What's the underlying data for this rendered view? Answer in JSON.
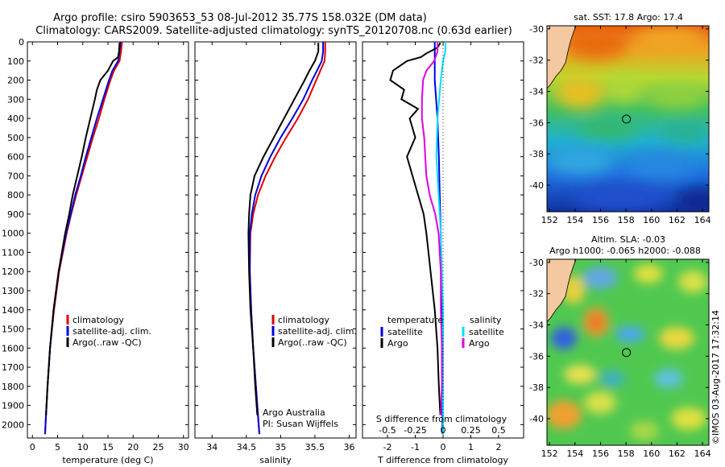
{
  "title": {
    "line1": "Argo profile: csiro 5903653_53 08-Jul-2012 35.77S 158.032E (DM data)",
    "line2": "Climatology: CARS2009. Satellite-adjusted climatology: synTS_20120708.nc (0.63d earlier)"
  },
  "credit": "©IMOS 03-Aug-2017 17:32:14",
  "colors": {
    "climatology": "#e00000",
    "satellite": "#0000e0",
    "argo": "#000000",
    "sal_satellite": "#00e0ff",
    "sal_argo": "#e000e0"
  },
  "chart_data": [
    {
      "id": "temperature",
      "type": "line",
      "xlabel": "temperature (deg C)",
      "ylabel": "",
      "xlim": [
        -1,
        31
      ],
      "ylim": [
        2070,
        0
      ],
      "xticks": [
        0,
        5,
        10,
        15,
        20,
        25,
        30
      ],
      "xtick_labels": [
        "0",
        "5",
        "10",
        "15",
        "20",
        "25",
        "30"
      ],
      "yticks": [
        0,
        100,
        200,
        300,
        400,
        500,
        600,
        700,
        800,
        900,
        1000,
        1100,
        1200,
        1300,
        1400,
        1500,
        1600,
        1700,
        1800,
        1900,
        2000
      ],
      "ytick_labels": [
        "0",
        "100",
        "200",
        "300",
        "400",
        "500",
        "600",
        "700",
        "800",
        "900",
        "1000",
        "1100",
        "1200",
        "1300",
        "1400",
        "1500",
        "1600",
        "1700",
        "1800",
        "1900",
        "2000"
      ],
      "legend": [
        "climatology",
        "satellite-adj. clim.",
        "Argo(..raw -QC)"
      ],
      "series": [
        {
          "name": "climatology",
          "color": "#e00000",
          "depth": [
            0,
            50,
            100,
            150,
            200,
            300,
            400,
            500,
            600,
            700,
            800,
            900,
            1000,
            1200,
            1400,
            1600,
            1800,
            2000,
            2050
          ],
          "values": [
            17.8,
            17.6,
            17.3,
            16.2,
            15.5,
            14.3,
            13.2,
            12.0,
            10.9,
            9.8,
            8.7,
            7.7,
            6.8,
            5.3,
            4.3,
            3.5,
            3.0,
            2.6,
            2.5
          ]
        },
        {
          "name": "satellite-adj. clim.",
          "color": "#0000e0",
          "depth": [
            0,
            50,
            100,
            150,
            200,
            300,
            400,
            500,
            600,
            700,
            800,
            900,
            1000,
            1200,
            1400,
            1600,
            1800,
            2000,
            2050
          ],
          "values": [
            17.5,
            17.3,
            17.0,
            15.9,
            15.2,
            14.0,
            12.8,
            11.7,
            10.6,
            9.6,
            8.5,
            7.6,
            6.7,
            5.2,
            4.2,
            3.5,
            3.0,
            2.6,
            2.5
          ]
        },
        {
          "name": "Argo(..raw -QC)",
          "color": "#000000",
          "depth": [
            5,
            50,
            80,
            100,
            150,
            200,
            250,
            300,
            400,
            500,
            600,
            700,
            800,
            900,
            1000,
            1200,
            1400,
            1600,
            1800,
            1950
          ],
          "values": [
            17.3,
            17.2,
            17.0,
            16.0,
            15.0,
            13.5,
            12.8,
            12.4,
            11.5,
            10.6,
            9.8,
            8.9,
            8.0,
            7.3,
            6.5,
            5.2,
            4.2,
            3.5,
            3.0,
            2.7
          ]
        }
      ]
    },
    {
      "id": "salinity",
      "type": "line",
      "xlabel": "salinity",
      "xlim": [
        33.75,
        36.1
      ],
      "ylim": [
        2070,
        0
      ],
      "xticks": [
        34,
        34.5,
        35,
        35.5,
        36
      ],
      "xtick_labels": [
        "34",
        "34.5",
        "35",
        "35.5",
        "36"
      ],
      "legend": [
        "climatology",
        "satellite-adj. clim.",
        "Argo(..raw -QC)"
      ],
      "annotation": [
        "Argo Australia",
        "PI: Susan Wijffels"
      ],
      "series": [
        {
          "name": "climatology",
          "color": "#e00000",
          "depth": [
            0,
            50,
            100,
            150,
            200,
            300,
            400,
            500,
            600,
            700,
            800,
            900,
            1000,
            1200,
            1400,
            1600,
            1800,
            2000,
            2050
          ],
          "values": [
            35.65,
            35.65,
            35.64,
            35.58,
            35.52,
            35.4,
            35.25,
            35.08,
            34.92,
            34.78,
            34.67,
            34.6,
            34.56,
            34.55,
            34.57,
            34.6,
            34.64,
            34.68,
            34.69
          ]
        },
        {
          "name": "satellite-adj. clim.",
          "color": "#0000e0",
          "depth": [
            0,
            50,
            100,
            150,
            200,
            300,
            400,
            500,
            600,
            700,
            800,
            900,
            1000,
            1200,
            1400,
            1600,
            1800,
            2000,
            2050
          ],
          "values": [
            35.62,
            35.62,
            35.6,
            35.53,
            35.46,
            35.33,
            35.17,
            35.0,
            34.85,
            34.72,
            34.63,
            34.58,
            34.55,
            34.55,
            34.57,
            34.6,
            34.64,
            34.68,
            34.69
          ]
        },
        {
          "name": "Argo(..raw -QC)",
          "color": "#000000",
          "depth": [
            5,
            50,
            100,
            150,
            200,
            300,
            400,
            500,
            600,
            700,
            800,
            900,
            1000,
            1200,
            1400,
            1600,
            1800,
            1950
          ],
          "values": [
            35.55,
            35.55,
            35.5,
            35.42,
            35.35,
            35.2,
            35.05,
            34.9,
            34.75,
            34.62,
            34.56,
            34.54,
            34.53,
            34.54,
            34.56,
            34.6,
            34.63,
            34.66
          ]
        }
      ]
    },
    {
      "id": "difference",
      "type": "line",
      "xlabel": "T difference from climatology",
      "xlabel_top": "S difference from climatology",
      "xlim": [
        -2.9,
        2.9
      ],
      "ylim": [
        2070,
        0
      ],
      "xticks": [
        -2,
        -1,
        0,
        1,
        2
      ],
      "xtick_labels": [
        "-2",
        "-1",
        "0",
        "1",
        "2"
      ],
      "s_ticks": [
        -0.5,
        -0.25,
        0,
        0.25,
        0.5
      ],
      "s_tick_labels": [
        "-0.5",
        "-0.25",
        "0",
        "0.25",
        "0.5"
      ],
      "legend_temperature": {
        "title": "temperature",
        "items": [
          "satellite",
          "Argo"
        ]
      },
      "legend_salinity": {
        "title": "salinity",
        "items": [
          "satellite",
          "Argo"
        ]
      },
      "series": [
        {
          "name": "temperature satellite",
          "color": "#0000e0",
          "depth": [
            0,
            50,
            100,
            200,
            400,
            600,
            800,
            1000,
            1200,
            1400,
            1600,
            1800,
            2000,
            2050
          ],
          "values": [
            -0.3,
            -0.3,
            -0.3,
            -0.3,
            -0.2,
            -0.15,
            -0.12,
            -0.08,
            -0.06,
            -0.05,
            -0.04,
            -0.03,
            -0.02,
            -0.02
          ]
        },
        {
          "name": "temperature Argo",
          "color": "#000000",
          "depth": [
            5,
            30,
            60,
            80,
            100,
            150,
            200,
            250,
            300,
            350,
            400,
            500,
            600,
            700,
            800,
            900,
            1000,
            1200,
            1400,
            1600,
            1800,
            1950
          ],
          "values": [
            -0.1,
            -0.2,
            -0.6,
            -0.8,
            -1.3,
            -1.8,
            -1.9,
            -1.4,
            -1.5,
            -0.9,
            -1.2,
            -1.0,
            -1.3,
            -1.1,
            -0.9,
            -0.7,
            -0.6,
            -0.45,
            -0.3,
            -0.2,
            -0.15,
            -0.1
          ]
        },
        {
          "name": "salinity satellite",
          "color": "#00e0ff",
          "depth": [
            0,
            50,
            100,
            200,
            400,
            600,
            800,
            1000,
            1200,
            1400,
            1600,
            1800,
            2000,
            2050
          ],
          "values": [
            0.02,
            0.02,
            0.0,
            -0.02,
            -0.05,
            -0.06,
            -0.04,
            -0.02,
            -0.01,
            0.0,
            0.0,
            0.0,
            0.0,
            0.0
          ]
        },
        {
          "name": "salinity Argo",
          "color": "#e000e0",
          "depth": [
            5,
            50,
            100,
            150,
            200,
            300,
            400,
            500,
            600,
            700,
            800,
            900,
            1000,
            1200,
            1400,
            1600,
            1800,
            1950
          ],
          "values": [
            -0.05,
            -0.05,
            -0.08,
            -0.15,
            -0.18,
            -0.19,
            -0.19,
            -0.17,
            -0.16,
            -0.15,
            -0.12,
            -0.07,
            -0.04,
            -0.02,
            -0.02,
            -0.01,
            -0.01,
            -0.02
          ]
        }
      ]
    },
    {
      "id": "sst-map",
      "type": "heatmap",
      "title": "sat. SST: 17.8  Argo: 17.4",
      "xticks": [
        152,
        154,
        156,
        158,
        160,
        162,
        164
      ],
      "xtick_labels": [
        "152",
        "154",
        "156",
        "158",
        "160",
        "162",
        "164"
      ],
      "yticks": [
        -30,
        -32,
        -34,
        -36,
        -38,
        -40
      ],
      "ytick_labels": [
        "-30",
        "-32",
        "-34",
        "-36",
        "-38",
        "-40"
      ],
      "xlim": [
        151.8,
        164.5
      ],
      "ylim": [
        -41.7,
        -29.8
      ],
      "profile_location": [
        158.032,
        -35.77
      ]
    },
    {
      "id": "sla-map",
      "type": "heatmap",
      "title": "Altim. SLA: -0.03",
      "subtitle": "Argo h1000: -0.065 h2000: -0.088",
      "xticks": [
        152,
        154,
        156,
        158,
        160,
        162,
        164
      ],
      "xtick_labels": [
        "152",
        "154",
        "156",
        "158",
        "160",
        "162",
        "164"
      ],
      "yticks": [
        -30,
        -32,
        -34,
        -36,
        -38,
        -40
      ],
      "ytick_labels": [
        "-30",
        "-32",
        "-34",
        "-36",
        "-38",
        "-40"
      ],
      "xlim": [
        151.8,
        164.5
      ],
      "ylim": [
        -41.7,
        -29.8
      ],
      "profile_location": [
        158.032,
        -35.77
      ]
    }
  ]
}
